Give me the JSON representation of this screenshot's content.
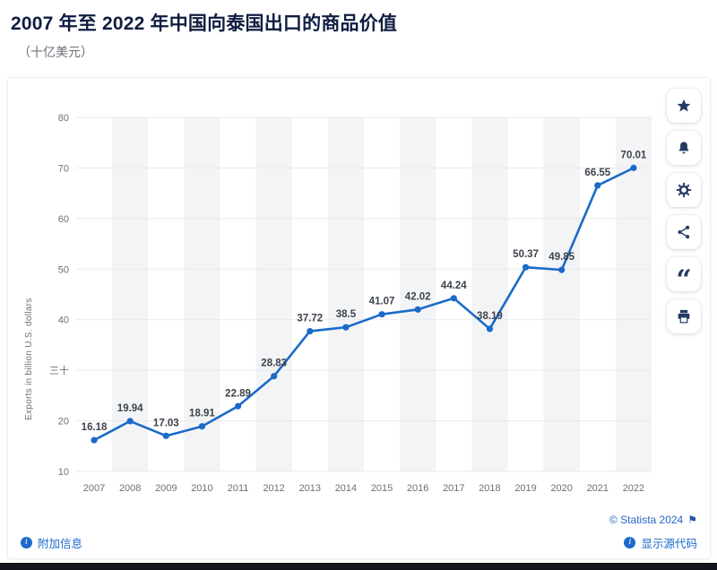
{
  "header": {
    "title": "2007 年至 2022 年中国向泰国出口的商品价值",
    "subtitle": "（十亿美元）"
  },
  "chart_data": {
    "type": "line",
    "title": "2007 年至 2022 年中国向泰国出口的商品价值",
    "categories": [
      "2007",
      "2008",
      "2009",
      "2010",
      "2011",
      "2012",
      "2013",
      "2014",
      "2015",
      "2016",
      "2017",
      "2018",
      "2019",
      "2020",
      "2021",
      "2022"
    ],
    "values": [
      16.18,
      19.94,
      17.03,
      18.91,
      22.89,
      28.83,
      37.72,
      38.5,
      41.07,
      42.02,
      44.24,
      38.19,
      50.37,
      49.85,
      66.55,
      70.01
    ],
    "xlabel": "",
    "ylabel": "Exports in billion U.S. dollars",
    "ylim": [
      10,
      80
    ],
    "yticks": [
      {
        "value": 10,
        "label": "10"
      },
      {
        "value": 20,
        "label": "20"
      },
      {
        "value": 30,
        "label": "三十"
      },
      {
        "value": 40,
        "label": "40"
      },
      {
        "value": 50,
        "label": "50"
      },
      {
        "value": 60,
        "label": "60"
      },
      {
        "value": 70,
        "label": "70"
      },
      {
        "value": 80,
        "label": "80"
      }
    ],
    "grid": "horizontal",
    "legend": "none",
    "colors": {
      "line": "#1b6ac9",
      "band": "#f3f4f6",
      "grid": "#e8eaed",
      "axis_text": "#6c7176",
      "value_label": "#3c434a"
    }
  },
  "toolbar": {
    "icons": [
      "star-icon",
      "bell-icon",
      "gear-icon",
      "share-icon",
      "quote-icon",
      "print-icon"
    ]
  },
  "icons": {
    "info_glyph": "i",
    "flag_glyph": "⚑",
    "quote_glyph": "“"
  },
  "footer": {
    "copyright": "© Statista 2024",
    "more_info_label": "附加信息",
    "show_source_label": "显示源代码"
  }
}
